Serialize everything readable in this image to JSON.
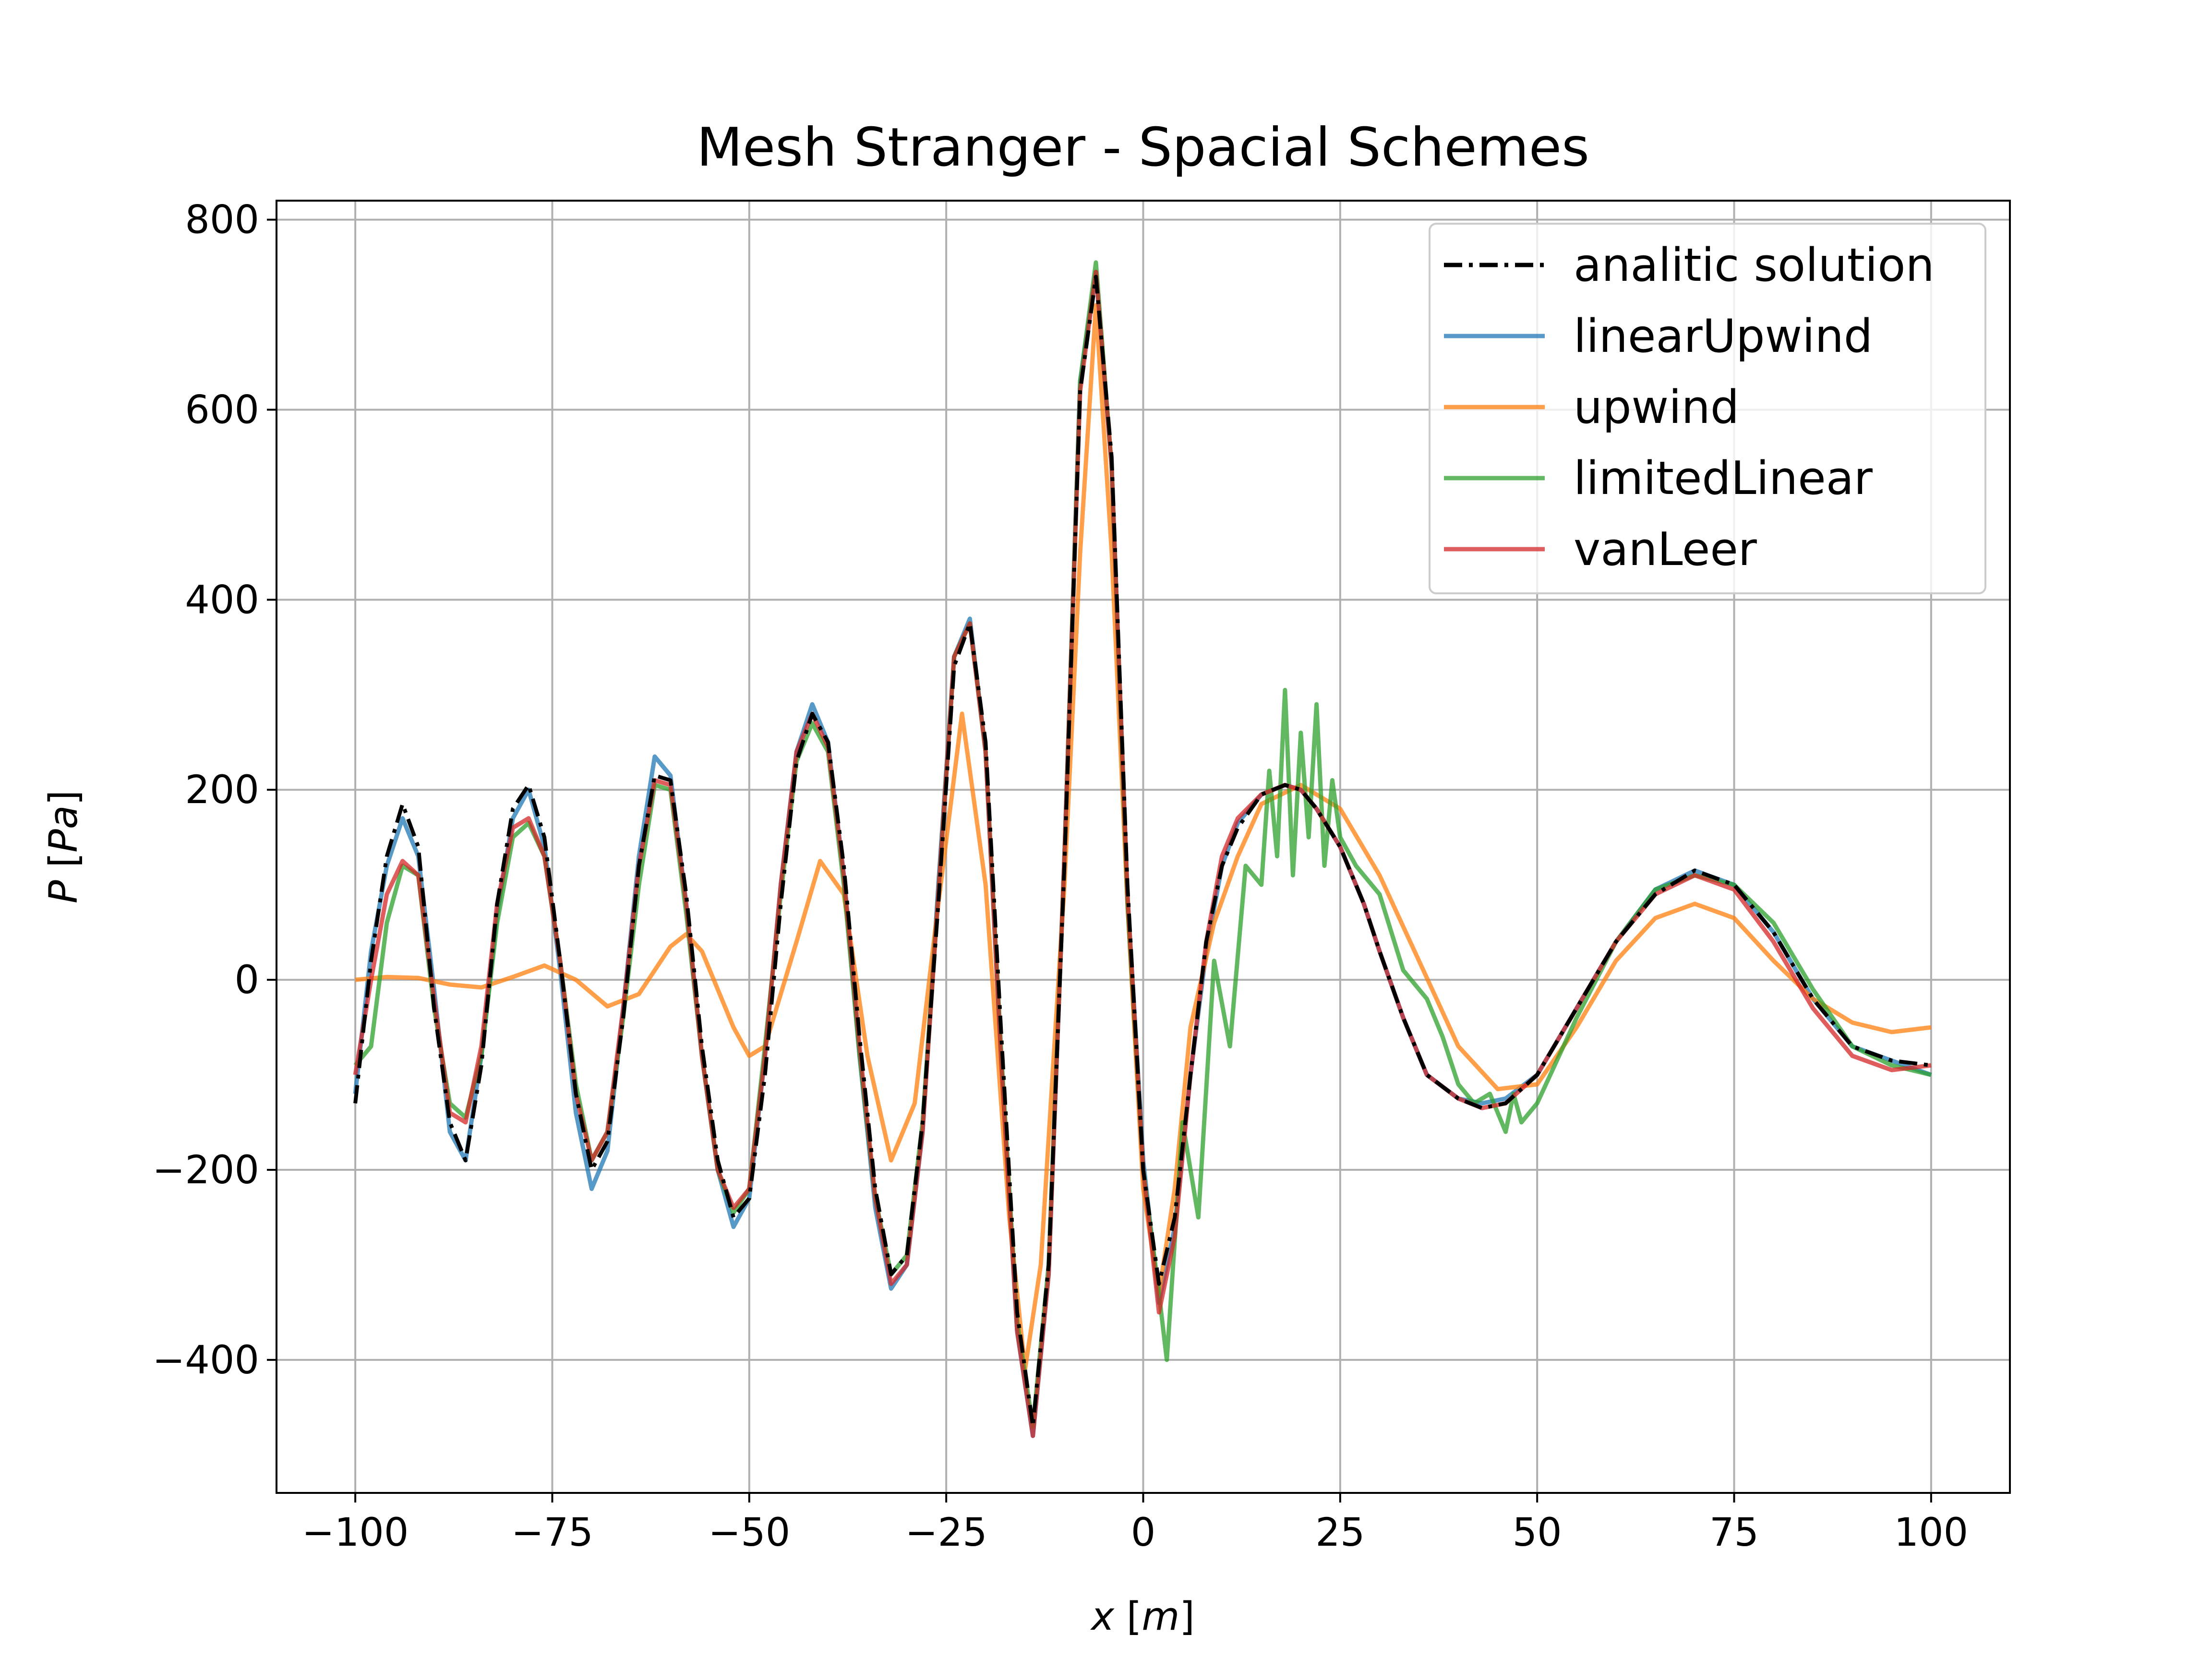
{
  "chart_data": {
    "type": "line",
    "title": "Mesh Stranger - Spacial Schemes",
    "xlabel": {
      "var": "x",
      "unit": "m"
    },
    "ylabel": {
      "var": "P",
      "unit": "Pa"
    },
    "xlim": [
      -110,
      110
    ],
    "ylim": [
      -540,
      820
    ],
    "xticks": [
      -100,
      -75,
      -50,
      -25,
      0,
      25,
      50,
      75,
      100
    ],
    "yticks": [
      -400,
      -200,
      0,
      200,
      400,
      600,
      800
    ],
    "grid": true,
    "legend_position": "top-right",
    "series": [
      {
        "name": "analitic solution",
        "color": "#000000",
        "style": "dashdot",
        "x": [
          -100,
          -98,
          -96,
          -94,
          -92,
          -90,
          -88,
          -86,
          -84,
          -82,
          -80,
          -78,
          -76,
          -74,
          -72,
          -70,
          -68,
          -66,
          -64,
          -62,
          -60,
          -58,
          -56,
          -54,
          -52,
          -50,
          -48,
          -46,
          -44,
          -42,
          -40,
          -38,
          -36,
          -34,
          -32,
          -30,
          -28,
          -26,
          -24,
          -22,
          -20,
          -18,
          -16,
          -14,
          -12,
          -10,
          -8,
          -6,
          -4,
          -2,
          0,
          2,
          4,
          6,
          8,
          10,
          12,
          15,
          18,
          20,
          22,
          25,
          28,
          30,
          33,
          36,
          40,
          43,
          46,
          50,
          55,
          60,
          65,
          70,
          75,
          80,
          85,
          90,
          95,
          100
        ],
        "y": [
          -130,
          20,
          130,
          185,
          140,
          -30,
          -150,
          -190,
          -90,
          80,
          180,
          205,
          150,
          20,
          -120,
          -200,
          -170,
          -40,
          120,
          215,
          210,
          90,
          -70,
          -190,
          -250,
          -230,
          -100,
          80,
          230,
          280,
          250,
          120,
          -60,
          -220,
          -310,
          -290,
          -150,
          80,
          330,
          375,
          250,
          -60,
          -350,
          -470,
          -300,
          120,
          620,
          740,
          550,
          100,
          -200,
          -320,
          -250,
          -100,
          40,
          120,
          160,
          195,
          205,
          200,
          180,
          140,
          80,
          30,
          -40,
          -100,
          -125,
          -135,
          -130,
          -100,
          -30,
          40,
          90,
          115,
          100,
          50,
          -20,
          -70,
          -85,
          -90
        ]
      },
      {
        "name": "linearUpwind",
        "color": "#1f77b4",
        "style": "solid",
        "x": [
          -100,
          -98,
          -96,
          -94,
          -92,
          -90,
          -88,
          -86,
          -84,
          -82,
          -80,
          -78,
          -76,
          -74,
          -72,
          -70,
          -68,
          -66,
          -64,
          -62,
          -60,
          -58,
          -56,
          -54,
          -52,
          -50,
          -48,
          -46,
          -44,
          -42,
          -40,
          -38,
          -36,
          -34,
          -32,
          -30,
          -28,
          -26,
          -24,
          -22,
          -20,
          -18,
          -16,
          -14,
          -12,
          -10,
          -8,
          -6,
          -4,
          -2,
          0,
          2,
          4,
          6,
          8,
          10,
          12,
          15,
          18,
          20,
          22,
          25,
          28,
          30,
          33,
          36,
          40,
          43,
          46,
          50,
          55,
          60,
          65,
          70,
          75,
          80,
          85,
          90,
          95,
          100
        ],
        "y": [
          -120,
          30,
          120,
          170,
          130,
          -10,
          -160,
          -190,
          -80,
          70,
          170,
          200,
          140,
          10,
          -140,
          -220,
          -180,
          -30,
          130,
          235,
          215,
          80,
          -80,
          -200,
          -260,
          -230,
          -80,
          100,
          240,
          290,
          250,
          110,
          -80,
          -240,
          -325,
          -300,
          -160,
          100,
          340,
          380,
          240,
          -90,
          -370,
          -480,
          -310,
          130,
          630,
          745,
          540,
          90,
          -190,
          -340,
          -260,
          -100,
          30,
          120,
          165,
          195,
          205,
          200,
          180,
          140,
          80,
          30,
          -40,
          -100,
          -125,
          -130,
          -125,
          -100,
          -30,
          40,
          95,
          115,
          100,
          50,
          -20,
          -70,
          -85,
          -100
        ]
      },
      {
        "name": "upwind",
        "color": "#ff7f0e",
        "style": "solid",
        "x": [
          -100,
          -96,
          -92,
          -88,
          -84,
          -80,
          -76,
          -72,
          -68,
          -64,
          -60,
          -58,
          -56,
          -52,
          -50,
          -48,
          -44,
          -41,
          -38,
          -35,
          -32,
          -29,
          -26,
          -23,
          -20,
          -17,
          -15,
          -13,
          -10,
          -8,
          -6,
          -4,
          -2,
          0,
          2,
          4,
          6,
          9,
          12,
          15,
          20,
          25,
          30,
          35,
          40,
          45,
          50,
          55,
          60,
          65,
          70,
          75,
          80,
          85,
          90,
          95,
          100
        ],
        "y": [
          0,
          3,
          2,
          -5,
          -8,
          3,
          15,
          0,
          -28,
          -15,
          35,
          48,
          30,
          -50,
          -80,
          -70,
          40,
          125,
          90,
          -80,
          -190,
          -130,
          80,
          280,
          100,
          -250,
          -410,
          -300,
          100,
          450,
          710,
          450,
          80,
          -220,
          -330,
          -220,
          -50,
          60,
          130,
          185,
          205,
          180,
          110,
          20,
          -70,
          -115,
          -110,
          -50,
          20,
          65,
          80,
          65,
          20,
          -20,
          -45,
          -55,
          -50
        ]
      },
      {
        "name": "limitedLinear",
        "color": "#2ca02c",
        "style": "solid",
        "x": [
          -100,
          -98,
          -96,
          -94,
          -92,
          -90,
          -88,
          -86,
          -84,
          -82,
          -80,
          -78,
          -76,
          -74,
          -72,
          -70,
          -68,
          -66,
          -64,
          -62,
          -60,
          -58,
          -56,
          -54,
          -52,
          -50,
          -48,
          -46,
          -44,
          -42,
          -40,
          -38,
          -36,
          -34,
          -32,
          -30,
          -28,
          -26,
          -24,
          -22,
          -20,
          -18,
          -16,
          -14,
          -12,
          -10,
          -8,
          -6,
          -4,
          -2,
          0,
          2,
          3,
          5,
          7,
          9,
          11,
          13,
          15,
          16,
          17,
          18,
          19,
          20,
          21,
          22,
          23,
          24,
          25,
          27,
          30,
          33,
          36,
          38,
          40,
          42,
          44,
          46,
          47,
          48,
          50,
          55,
          60,
          65,
          70,
          75,
          80,
          85,
          90,
          95,
          100
        ],
        "y": [
          -90,
          -70,
          60,
          120,
          110,
          -30,
          -130,
          -145,
          -80,
          60,
          150,
          165,
          130,
          20,
          -110,
          -190,
          -160,
          -40,
          100,
          205,
          200,
          70,
          -80,
          -200,
          -245,
          -220,
          -70,
          90,
          230,
          270,
          240,
          100,
          -80,
          -230,
          -310,
          -290,
          -150,
          90,
          340,
          375,
          240,
          -80,
          -360,
          -470,
          -300,
          130,
          630,
          755,
          540,
          80,
          -200,
          -330,
          -400,
          -150,
          -250,
          20,
          -70,
          120,
          100,
          220,
          130,
          305,
          110,
          260,
          150,
          290,
          120,
          210,
          150,
          120,
          90,
          10,
          -20,
          -60,
          -110,
          -130,
          -120,
          -160,
          -120,
          -150,
          -130,
          -40,
          40,
          95,
          110,
          100,
          60,
          -10,
          -70,
          -90,
          -100
        ]
      },
      {
        "name": "vanLeer",
        "color": "#d62728",
        "style": "solid",
        "x": [
          -100,
          -98,
          -96,
          -94,
          -92,
          -90,
          -88,
          -86,
          -84,
          -82,
          -80,
          -78,
          -76,
          -74,
          -72,
          -70,
          -68,
          -66,
          -64,
          -62,
          -60,
          -58,
          -56,
          -54,
          -52,
          -50,
          -48,
          -46,
          -44,
          -42,
          -40,
          -38,
          -36,
          -34,
          -32,
          -30,
          -28,
          -26,
          -24,
          -22,
          -20,
          -18,
          -16,
          -14,
          -12,
          -10,
          -8,
          -6,
          -4,
          -2,
          0,
          2,
          4,
          6,
          8,
          10,
          12,
          15,
          18,
          20,
          22,
          25,
          28,
          30,
          33,
          36,
          40,
          43,
          46,
          50,
          55,
          60,
          65,
          70,
          75,
          80,
          85,
          90,
          95,
          100
        ],
        "y": [
          -100,
          0,
          90,
          125,
          110,
          -20,
          -140,
          -150,
          -70,
          80,
          160,
          170,
          130,
          20,
          -120,
          -190,
          -160,
          -30,
          120,
          210,
          205,
          80,
          -80,
          -200,
          -240,
          -220,
          -80,
          100,
          240,
          280,
          245,
          110,
          -70,
          -230,
          -320,
          -300,
          -160,
          90,
          340,
          375,
          240,
          -90,
          -370,
          -480,
          -310,
          130,
          620,
          745,
          540,
          90,
          -200,
          -350,
          -270,
          -100,
          40,
          130,
          170,
          195,
          205,
          200,
          180,
          140,
          80,
          30,
          -40,
          -100,
          -125,
          -135,
          -130,
          -100,
          -30,
          40,
          90,
          110,
          95,
          40,
          -30,
          -80,
          -95,
          -90
        ]
      }
    ]
  }
}
